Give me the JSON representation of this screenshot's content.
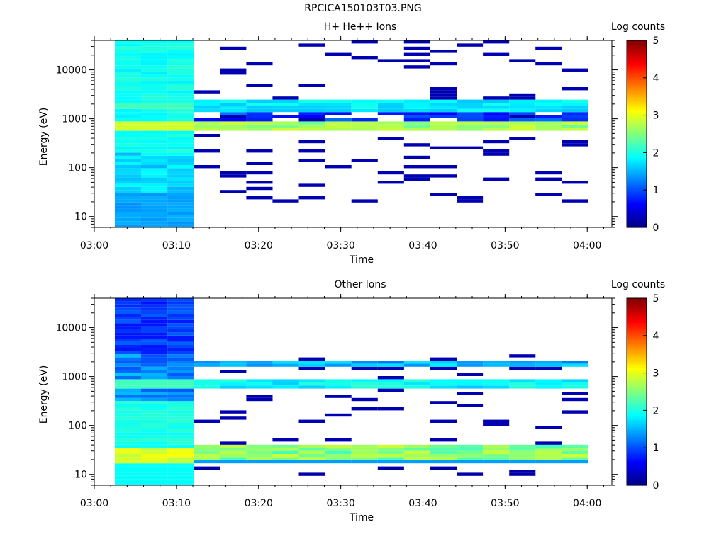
{
  "page_title": "RPCICA150103T03.PNG",
  "colorbar": {
    "label": "Log counts",
    "ticks": [
      "0",
      "1",
      "2",
      "3",
      "4",
      "5"
    ],
    "range": [
      0,
      5
    ]
  },
  "chart_data": [
    {
      "type": "heatmap",
      "title": "H+ He++ Ions",
      "xlabel": "Time",
      "ylabel": "Energy (eV)",
      "x_ticks": [
        "03:00",
        "03:10",
        "03:20",
        "03:30",
        "03:40",
        "03:50",
        "04:00"
      ],
      "y_ticks": [
        "10",
        "100",
        "1000",
        "10000"
      ],
      "y_scale": "log",
      "xlim": [
        "03:00",
        "04:03"
      ],
      "ylim": [
        6,
        40000
      ],
      "data_start": "03:02.5",
      "data_end": "04:01",
      "bin_width_min": 3.2
    },
    {
      "type": "heatmap",
      "title": "Other Ions",
      "xlabel": "Time",
      "ylabel": "Energy (eV)",
      "x_ticks": [
        "03:00",
        "03:10",
        "03:20",
        "03:30",
        "03:40",
        "03:50",
        "04:00"
      ],
      "y_ticks": [
        "10",
        "100",
        "1000",
        "10000"
      ],
      "y_scale": "log",
      "xlim": [
        "03:00",
        "04:03"
      ],
      "ylim": [
        6,
        40000
      ],
      "data_start": "03:02.5",
      "data_end": "04:01",
      "bin_width_min": 3.2
    }
  ]
}
